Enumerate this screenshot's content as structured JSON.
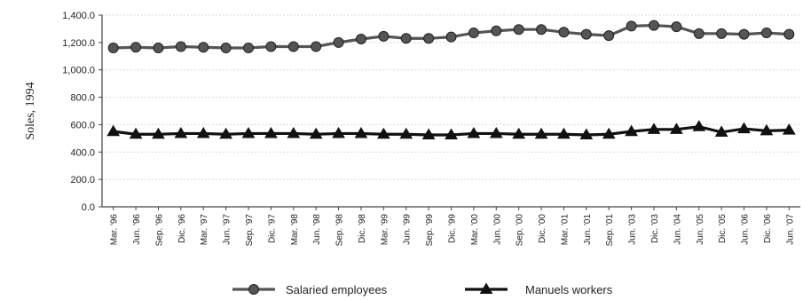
{
  "chart_data": {
    "type": "line",
    "title": "",
    "xlabel": "",
    "ylabel": "Soles, 1994",
    "ylim": [
      0,
      1400
    ],
    "yticks": [
      "0.0",
      "200.0",
      "400.0",
      "600.0",
      "800.0",
      "1,000.0",
      "1,200.0",
      "1,400.0"
    ],
    "grid": true,
    "legend_position": "bottom",
    "categories": [
      "Mar. '96",
      "Jun. '96",
      "Sep. '96",
      "Dic. '96",
      "Mar. '97",
      "Jun. '97",
      "Sep. '97",
      "Dic. '97",
      "Mar. '98",
      "Jun. '98",
      "Sep. '98",
      "Dic. '98",
      "Mar. '99",
      "Jun. '99",
      "Sep. '99",
      "Dic. '99",
      "Mar. '00",
      "Jun. '00",
      "Sep. '00",
      "Dic. '00",
      "Mar. '01",
      "Jun. '01",
      "Sep. '01",
      "Jun. '03",
      "Dic. '03",
      "Jun. '04",
      "Jun. '05",
      "Dic. '05",
      "Jun. '06",
      "Dic. '06",
      "Jun. '07"
    ],
    "series": [
      {
        "name": "Salaried employees",
        "marker": "circle",
        "color": "#555555",
        "values": [
          1160,
          1165,
          1160,
          1170,
          1165,
          1160,
          1160,
          1170,
          1170,
          1170,
          1200,
          1225,
          1245,
          1230,
          1230,
          1240,
          1270,
          1285,
          1295,
          1295,
          1275,
          1260,
          1250,
          1320,
          1325,
          1315,
          1265,
          1265,
          1260,
          1270,
          1260
        ]
      },
      {
        "name": "Manuels workers",
        "marker": "triangle",
        "color": "#111111",
        "values": [
          550,
          530,
          530,
          535,
          535,
          530,
          535,
          535,
          535,
          530,
          535,
          535,
          530,
          530,
          525,
          525,
          535,
          535,
          530,
          530,
          530,
          525,
          530,
          550,
          565,
          565,
          585,
          545,
          570,
          555,
          560
        ]
      }
    ]
  }
}
